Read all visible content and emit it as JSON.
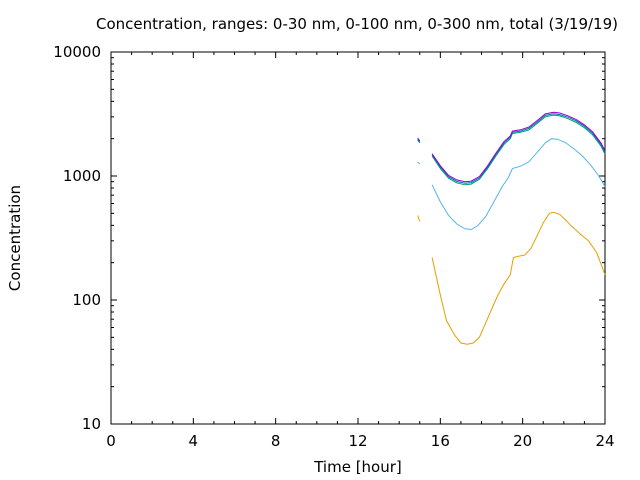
{
  "chart_data": {
    "type": "line",
    "title": "Concentration, ranges: 0-30 nm, 0-100 nm, 0-300 nm, total (3/19/19)",
    "xlabel": "Time [hour]",
    "ylabel": "Concentration",
    "xlim": [
      0,
      24
    ],
    "ylim": [
      10,
      10000
    ],
    "y_scale": "log",
    "x_ticks": [
      0,
      4,
      8,
      12,
      16,
      20,
      24
    ],
    "y_ticks": [
      10,
      100,
      1000,
      10000
    ],
    "x_tick_labels": [
      "0",
      "4",
      "8",
      "12",
      "16",
      "20",
      "24"
    ],
    "y_tick_labels": [
      "10",
      "100",
      "1000",
      "10000"
    ],
    "grid": false,
    "series": [
      {
        "color": "#e69f00",
        "segments": [
          [
            [
              14.9,
              480
            ],
            [
              15.0,
              430
            ]
          ],
          [
            [
              15.6,
              220
            ],
            [
              16.0,
              110
            ],
            [
              16.3,
              68
            ],
            [
              16.7,
              52
            ],
            [
              17.0,
              45
            ],
            [
              17.3,
              44
            ],
            [
              17.6,
              45
            ],
            [
              17.9,
              50
            ],
            [
              18.2,
              65
            ],
            [
              18.5,
              85
            ],
            [
              18.8,
              110
            ],
            [
              19.1,
              135
            ],
            [
              19.4,
              160
            ],
            [
              19.55,
              220
            ],
            [
              19.8,
              225
            ],
            [
              20.1,
              230
            ],
            [
              20.4,
              260
            ],
            [
              20.7,
              330
            ],
            [
              21.0,
              420
            ],
            [
              21.3,
              500
            ],
            [
              21.5,
              510
            ],
            [
              21.8,
              490
            ],
            [
              22.1,
              440
            ],
            [
              22.4,
              390
            ],
            [
              22.8,
              340
            ],
            [
              23.2,
              300
            ],
            [
              23.6,
              240
            ],
            [
              24.0,
              160
            ]
          ]
        ]
      },
      {
        "color": "#56b4e9",
        "segments": [
          [
            [
              14.9,
              1300
            ],
            [
              15.0,
              1250
            ]
          ],
          [
            [
              15.6,
              850
            ],
            [
              16.0,
              620
            ],
            [
              16.4,
              480
            ],
            [
              16.8,
              410
            ],
            [
              17.2,
              375
            ],
            [
              17.5,
              370
            ],
            [
              17.8,
              395
            ],
            [
              18.2,
              470
            ],
            [
              18.6,
              620
            ],
            [
              19.0,
              820
            ],
            [
              19.3,
              970
            ],
            [
              19.5,
              1150
            ],
            [
              19.9,
              1200
            ],
            [
              20.3,
              1300
            ],
            [
              20.7,
              1550
            ],
            [
              21.1,
              1850
            ],
            [
              21.4,
              2000
            ],
            [
              21.7,
              1980
            ],
            [
              22.1,
              1850
            ],
            [
              22.5,
              1650
            ],
            [
              22.9,
              1450
            ],
            [
              23.3,
              1230
            ],
            [
              23.7,
              1000
            ],
            [
              24.0,
              820
            ]
          ]
        ]
      },
      {
        "color": "#009e73",
        "segments": [
          [
            [
              14.9,
              1950
            ],
            [
              15.0,
              1850
            ]
          ],
          [
            [
              15.6,
              1450
            ],
            [
              16.0,
              1150
            ],
            [
              16.4,
              960
            ],
            [
              16.8,
              880
            ],
            [
              17.2,
              850
            ],
            [
              17.5,
              860
            ],
            [
              17.9,
              940
            ],
            [
              18.3,
              1150
            ],
            [
              18.7,
              1450
            ],
            [
              19.1,
              1800
            ],
            [
              19.4,
              2000
            ],
            [
              19.5,
              2200
            ],
            [
              19.9,
              2250
            ],
            [
              20.3,
              2350
            ],
            [
              20.7,
              2650
            ],
            [
              21.1,
              3000
            ],
            [
              21.5,
              3100
            ],
            [
              21.8,
              3050
            ],
            [
              22.2,
              2900
            ],
            [
              22.6,
              2700
            ],
            [
              23.0,
              2450
            ],
            [
              23.4,
              2150
            ],
            [
              23.8,
              1750
            ],
            [
              24.0,
              1500
            ]
          ]
        ]
      },
      {
        "color": "#0072b2",
        "segments": [
          [
            [
              14.9,
              1980
            ],
            [
              15.0,
              1880
            ]
          ],
          [
            [
              15.6,
              1480
            ],
            [
              16.0,
              1180
            ],
            [
              16.4,
              985
            ],
            [
              16.8,
              905
            ],
            [
              17.2,
              875
            ],
            [
              17.5,
              885
            ],
            [
              17.9,
              965
            ],
            [
              18.3,
              1180
            ],
            [
              18.7,
              1490
            ],
            [
              19.1,
              1850
            ],
            [
              19.4,
              2050
            ],
            [
              19.5,
              2250
            ],
            [
              19.9,
              2300
            ],
            [
              20.3,
              2420
            ],
            [
              20.7,
              2720
            ],
            [
              21.1,
              3080
            ],
            [
              21.5,
              3180
            ],
            [
              21.8,
              3130
            ],
            [
              22.2,
              2980
            ],
            [
              22.6,
              2780
            ],
            [
              23.0,
              2520
            ],
            [
              23.4,
              2210
            ],
            [
              23.8,
              1800
            ],
            [
              24.0,
              1550
            ]
          ]
        ]
      },
      {
        "color": "#9400d3",
        "segments": [
          [
            [
              14.9,
              2020
            ],
            [
              15.0,
              1920
            ]
          ],
          [
            [
              15.6,
              1510
            ],
            [
              16.0,
              1210
            ],
            [
              16.4,
              1010
            ],
            [
              16.8,
              930
            ],
            [
              17.2,
              900
            ],
            [
              17.5,
              910
            ],
            [
              17.9,
              990
            ],
            [
              18.3,
              1210
            ],
            [
              18.7,
              1530
            ],
            [
              19.1,
              1900
            ],
            [
              19.4,
              2100
            ],
            [
              19.5,
              2300
            ],
            [
              19.9,
              2360
            ],
            [
              20.3,
              2480
            ],
            [
              20.7,
              2800
            ],
            [
              21.1,
              3170
            ],
            [
              21.5,
              3270
            ],
            [
              21.8,
              3220
            ],
            [
              22.2,
              3060
            ],
            [
              22.6,
              2850
            ],
            [
              23.0,
              2590
            ],
            [
              23.4,
              2270
            ],
            [
              23.8,
              1850
            ],
            [
              24.0,
              1600
            ]
          ]
        ]
      }
    ]
  }
}
